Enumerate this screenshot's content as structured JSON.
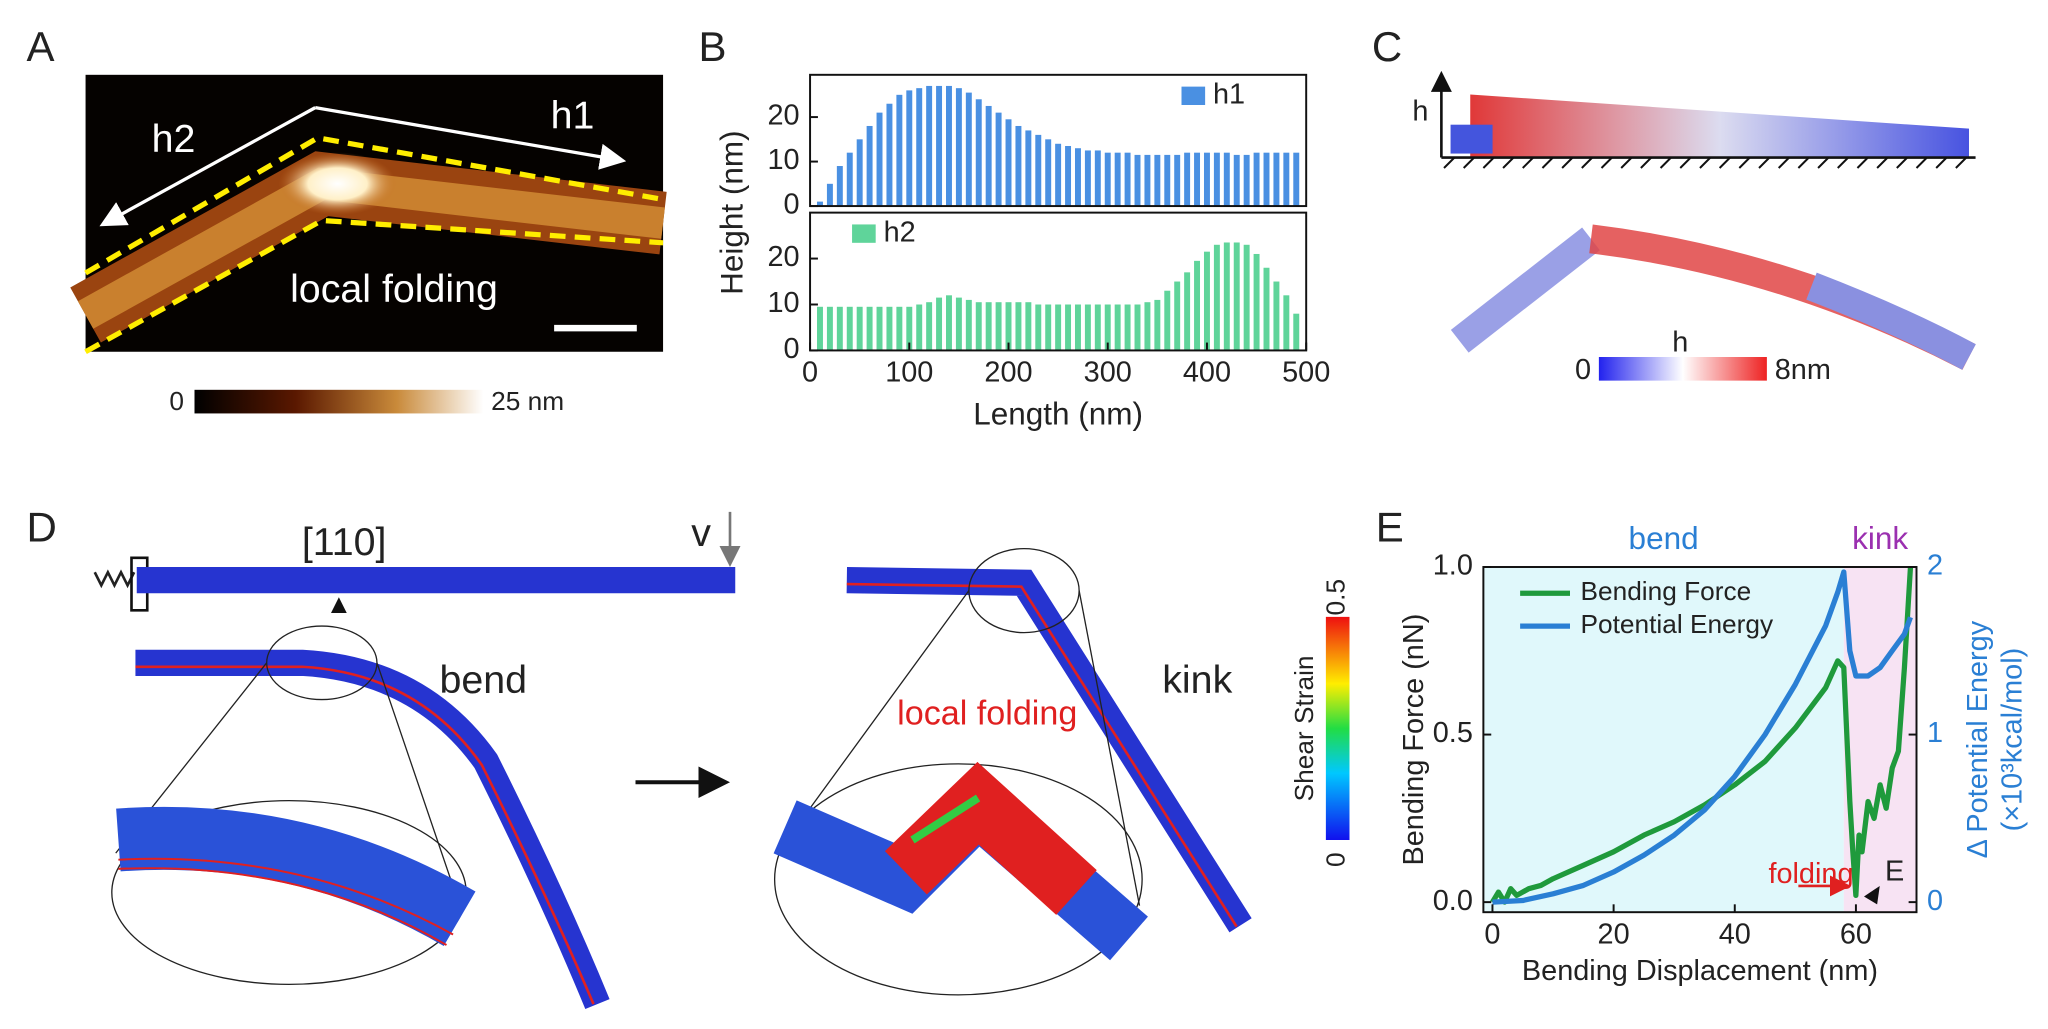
{
  "figure": {
    "panel_labels": [
      "A",
      "B",
      "C",
      "D",
      "E"
    ],
    "panel_a": {
      "labels": [
        "h1",
        "h2",
        "local folding"
      ],
      "colorbar": [
        "0",
        "25 nm"
      ]
    },
    "panel_c": {
      "axis": "h",
      "colorbar_title": "h",
      "colorbar": [
        "0",
        "8nm"
      ]
    },
    "panel_d": {
      "direction": "[110]",
      "velocity": "v",
      "bend": "bend",
      "kink": "kink",
      "local_folding": "local folding",
      "colorbar_title": "Shear Strain",
      "colorbar": [
        "0",
        "0.5"
      ]
    }
  },
  "chart_data": [
    {
      "type": "bar",
      "ylabel": "Height (nm)",
      "x": [
        10,
        20,
        30,
        40,
        50,
        60,
        70,
        80,
        90,
        100,
        110,
        120,
        130,
        140,
        150,
        160,
        170,
        180,
        190,
        200,
        210,
        220,
        230,
        240,
        250,
        260,
        270,
        280,
        290,
        300,
        310,
        320,
        330,
        340,
        350,
        360,
        370,
        380,
        390,
        400,
        410,
        420,
        430,
        440,
        450,
        460,
        470,
        480,
        490
      ],
      "series": [
        {
          "name": "h1",
          "color": "#4a90e2",
          "values": [
            1,
            5,
            9,
            12,
            15,
            18,
            21,
            23,
            25,
            26,
            26.5,
            27,
            27,
            27,
            26.5,
            25.5,
            24,
            22.5,
            21,
            19.5,
            18,
            17,
            16,
            15,
            14,
            13.5,
            13,
            12.5,
            12.5,
            12,
            12,
            12,
            11.5,
            11.5,
            11.5,
            11.5,
            11.5,
            12,
            12,
            12,
            12,
            12,
            11.5,
            11.5,
            12,
            12,
            12,
            12,
            12
          ]
        }
      ],
      "xlim": [
        0,
        500
      ],
      "ylim": [
        0,
        29.5
      ],
      "yticks": [
        0,
        10,
        20
      ],
      "legend": "upper right"
    },
    {
      "type": "bar",
      "xlabel": "Length (nm)",
      "x": [
        10,
        20,
        30,
        40,
        50,
        60,
        70,
        80,
        90,
        100,
        110,
        120,
        130,
        140,
        150,
        160,
        170,
        180,
        190,
        200,
        210,
        220,
        230,
        240,
        250,
        260,
        270,
        280,
        290,
        300,
        310,
        320,
        330,
        340,
        350,
        360,
        370,
        380,
        390,
        400,
        410,
        420,
        430,
        440,
        450,
        460,
        470,
        480,
        490
      ],
      "series": [
        {
          "name": "h2",
          "color": "#5fd49a",
          "values": [
            9.5,
            9.5,
            9.5,
            9.5,
            9.5,
            9.5,
            9.5,
            9.5,
            9.5,
            9.5,
            10,
            10.5,
            11.5,
            12,
            11.5,
            11,
            10.5,
            10.5,
            10.5,
            10.5,
            10.5,
            10.5,
            10,
            10,
            10,
            10,
            10,
            10,
            10,
            10,
            10,
            10,
            10,
            10.5,
            11,
            13,
            15,
            17,
            19.5,
            21.5,
            23,
            23.5,
            23.5,
            23,
            21,
            18,
            15,
            12,
            8
          ]
        }
      ],
      "xlim": [
        0,
        500
      ],
      "ylim": [
        0,
        30
      ],
      "xticks": [
        0,
        100,
        200,
        300,
        400,
        500
      ],
      "yticks": [
        0,
        10,
        20
      ],
      "legend": "upper left"
    },
    {
      "type": "line",
      "xlabel": "Bending Displacement (nm)",
      "ylabel": "Bending Force (nN)",
      "y2label": [
        "Δ Potential Energy",
        "(×10³kcal/mol)"
      ],
      "annotations": [
        "folding",
        "E"
      ],
      "regions": [
        {
          "label": "bend",
          "from": -1.5,
          "to": 58,
          "color": "#e0f8fb",
          "text_color": "#2a7fd4"
        },
        {
          "label": "kink",
          "from": 58,
          "to": 70,
          "color": "#f7e3f3",
          "text_color": "#9b30b0"
        }
      ],
      "series": [
        {
          "name": "Bending Force",
          "color": "#1f9a3c",
          "x": [
            0,
            1,
            2,
            3,
            4,
            6,
            8,
            10,
            15,
            20,
            25,
            30,
            35,
            40,
            45,
            50,
            55,
            57,
            58,
            59,
            59.5,
            60,
            60.5,
            61,
            62,
            63,
            64,
            65,
            66,
            67,
            68,
            69
          ],
          "values": [
            0,
            0.03,
            0,
            0.04,
            0.02,
            0.04,
            0.05,
            0.07,
            0.11,
            0.15,
            0.2,
            0.24,
            0.29,
            0.35,
            0.42,
            0.52,
            0.64,
            0.72,
            0.7,
            0.3,
            0.15,
            0.02,
            0.2,
            0.15,
            0.3,
            0.25,
            0.35,
            0.28,
            0.4,
            0.45,
            0.7,
            1
          ]
        },
        {
          "name": "Potential Energy",
          "color": "#2a7fd4",
          "axis": "y2",
          "x": [
            0,
            5,
            10,
            15,
            20,
            25,
            30,
            35,
            40,
            45,
            50,
            55,
            57,
            58,
            59,
            60,
            62,
            64,
            66,
            68,
            69
          ],
          "values": [
            0,
            0.01,
            0.05,
            0.1,
            0.18,
            0.28,
            0.4,
            0.55,
            0.75,
            1,
            1.3,
            1.65,
            1.85,
            1.97,
            1.5,
            1.35,
            1.35,
            1.4,
            1.5,
            1.6,
            1.7
          ]
        }
      ],
      "xlim": [
        -1.5,
        70
      ],
      "ylim": [
        -0.03,
        1
      ],
      "y2lim": [
        -0.06,
        2
      ],
      "xticks": [
        0,
        20,
        40,
        60
      ],
      "yticks": [
        {
          "value": 0,
          "label": "0.0"
        },
        0.5,
        {
          "value": 1,
          "label": "1.0"
        }
      ],
      "y2ticks": [
        0,
        1,
        2
      ],
      "legend": "upper left"
    }
  ]
}
